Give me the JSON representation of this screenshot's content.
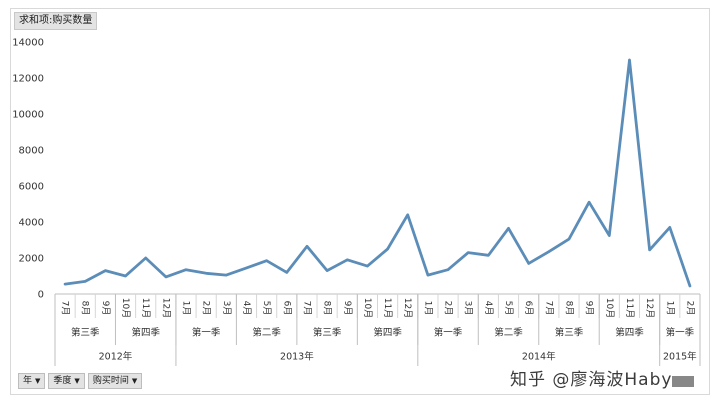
{
  "field_list": {
    "value_field": "求和项:购买数量"
  },
  "filters": [
    {
      "label": "年"
    },
    {
      "label": "季度"
    },
    {
      "label": "购买时间"
    }
  ],
  "watermark": "知乎 @廖海波Haby",
  "chart_data": {
    "type": "line",
    "title": "",
    "ylim": [
      0,
      14000
    ],
    "yticks": [
      0,
      2000,
      4000,
      6000,
      8000,
      10000,
      12000,
      14000
    ],
    "line_color": "#5b8db8",
    "grid": false,
    "months": [
      "7月",
      "8月",
      "9月",
      "10月",
      "11月",
      "12月",
      "1月",
      "2月",
      "3月",
      "4月",
      "5月",
      "6月",
      "7月",
      "8月",
      "9月",
      "10月",
      "11月",
      "12月",
      "1月",
      "2月",
      "3月",
      "4月",
      "5月",
      "6月",
      "7月",
      "8月",
      "9月",
      "10月",
      "11月",
      "12月",
      "1月",
      "2月"
    ],
    "values": [
      550,
      700,
      1300,
      1000,
      2000,
      950,
      1350,
      1150,
      1050,
      1450,
      1850,
      1200,
      2650,
      1300,
      1900,
      1550,
      2500,
      4400,
      1050,
      1350,
      2300,
      2150,
      3650,
      1700,
      2350,
      3050,
      5100,
      3250,
      13000,
      2450,
      3700,
      450
    ],
    "quarters": [
      {
        "label": "第三季",
        "count": 3
      },
      {
        "label": "第四季",
        "count": 3
      },
      {
        "label": "第一季",
        "count": 3
      },
      {
        "label": "第二季",
        "count": 3
      },
      {
        "label": "第三季",
        "count": 3
      },
      {
        "label": "第四季",
        "count": 3
      },
      {
        "label": "第一季",
        "count": 3
      },
      {
        "label": "第二季",
        "count": 3
      },
      {
        "label": "第三季",
        "count": 3
      },
      {
        "label": "第四季",
        "count": 3
      },
      {
        "label": "第一季",
        "count": 2
      }
    ],
    "years": [
      {
        "label": "2012年",
        "count": 6
      },
      {
        "label": "2013年",
        "count": 12
      },
      {
        "label": "2014年",
        "count": 12
      },
      {
        "label": "2015年",
        "count": 2
      }
    ]
  }
}
